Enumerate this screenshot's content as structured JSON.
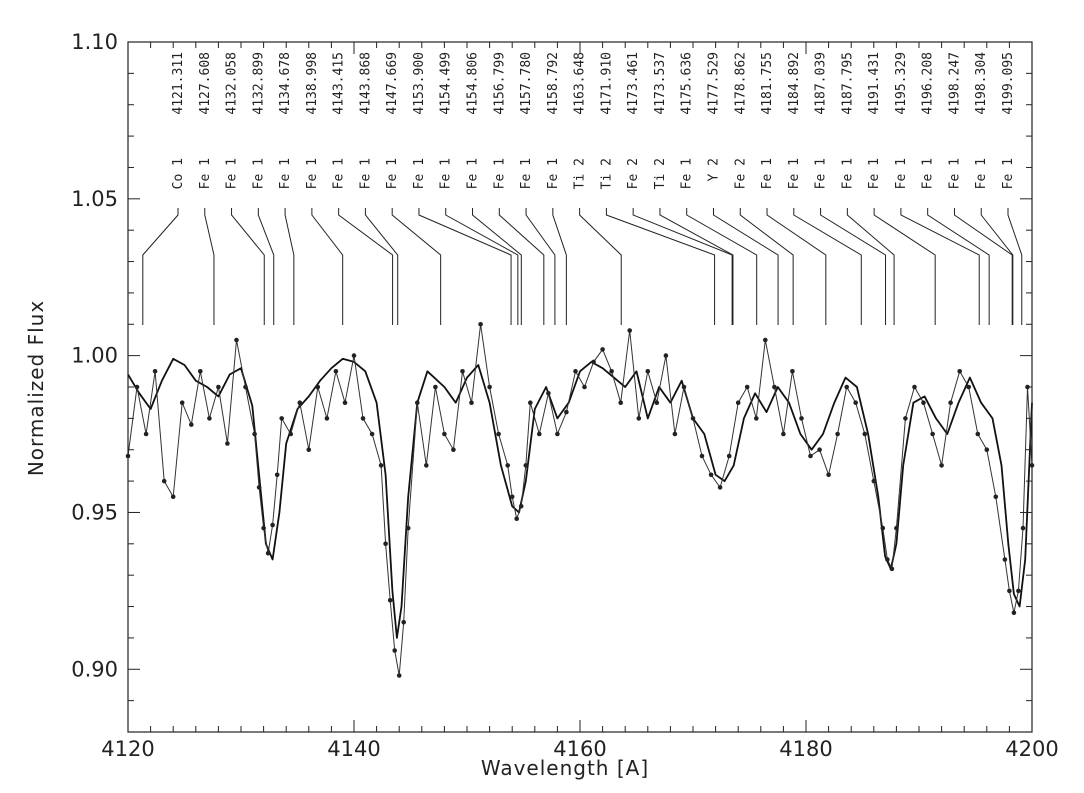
{
  "chart_data": {
    "type": "line",
    "xlabel": "Wavelength [A]",
    "ylabel": "Normalized Flux",
    "xlim": [
      4120,
      4200
    ],
    "ylim": [
      0.88,
      1.1
    ],
    "x_ticks": [
      "4120",
      "4140",
      "4160",
      "4180",
      "4200"
    ],
    "y_ticks": [
      "0.90",
      "0.95",
      "1.00",
      "1.05",
      "1.10"
    ],
    "grid": false,
    "line_identifications": [
      {
        "wavelength": "4121.311",
        "element": "Co 1"
      },
      {
        "wavelength": "4127.608",
        "element": "Fe 1"
      },
      {
        "wavelength": "4132.058",
        "element": "Fe 1"
      },
      {
        "wavelength": "4132.899",
        "element": "Fe 1"
      },
      {
        "wavelength": "4134.678",
        "element": "Fe 1"
      },
      {
        "wavelength": "4138.998",
        "element": "Fe 1"
      },
      {
        "wavelength": "4143.415",
        "element": "Fe 1"
      },
      {
        "wavelength": "4143.868",
        "element": "Fe 1"
      },
      {
        "wavelength": "4147.669",
        "element": "Fe 1"
      },
      {
        "wavelength": "4153.900",
        "element": "Fe 1"
      },
      {
        "wavelength": "4154.499",
        "element": "Fe 1"
      },
      {
        "wavelength": "4154.806",
        "element": "Fe 1"
      },
      {
        "wavelength": "4156.799",
        "element": "Fe 1"
      },
      {
        "wavelength": "4157.780",
        "element": "Fe 1"
      },
      {
        "wavelength": "4158.792",
        "element": "Fe 1"
      },
      {
        "wavelength": "4163.648",
        "element": "Ti 2"
      },
      {
        "wavelength": "4171.910",
        "element": "Ti 2"
      },
      {
        "wavelength": "4173.461",
        "element": "Fe 2"
      },
      {
        "wavelength": "4173.537",
        "element": "Ti 2"
      },
      {
        "wavelength": "4175.636",
        "element": "Fe 1"
      },
      {
        "wavelength": "4177.529",
        "element": "Y 2"
      },
      {
        "wavelength": "4178.862",
        "element": "Fe 2"
      },
      {
        "wavelength": "4181.755",
        "element": "Fe 1"
      },
      {
        "wavelength": "4184.892",
        "element": "Fe 1"
      },
      {
        "wavelength": "4187.039",
        "element": "Fe 1"
      },
      {
        "wavelength": "4187.795",
        "element": "Fe 1"
      },
      {
        "wavelength": "4191.431",
        "element": "Fe 1"
      },
      {
        "wavelength": "4195.329",
        "element": "Fe 1"
      },
      {
        "wavelength": "4196.208",
        "element": "Fe 1"
      },
      {
        "wavelength": "4198.247",
        "element": "Fe 1"
      },
      {
        "wavelength": "4198.304",
        "element": "Fe 1"
      },
      {
        "wavelength": "4199.095",
        "element": "Fe 1"
      }
    ],
    "series": [
      {
        "style": "observed, points connected",
        "x": [
          4120.0,
          4120.8,
          4121.6,
          4122.4,
          4123.2,
          4124.0,
          4124.8,
          4125.6,
          4126.4,
          4127.2,
          4128.0,
          4128.8,
          4129.6,
          4130.4,
          4131.2,
          4131.6,
          4132.0,
          4132.4,
          4132.8,
          4133.2,
          4133.6,
          4134.4,
          4135.2,
          4136.0,
          4136.8,
          4137.6,
          4138.4,
          4139.2,
          4140.0,
          4140.8,
          4141.6,
          4142.4,
          4142.8,
          4143.2,
          4143.6,
          4144.0,
          4144.4,
          4144.8,
          4145.6,
          4146.4,
          4147.2,
          4148.0,
          4148.8,
          4149.6,
          4150.4,
          4151.2,
          4152.0,
          4152.8,
          4153.6,
          4154.0,
          4154.4,
          4154.8,
          4155.2,
          4155.6,
          4156.4,
          4157.2,
          4158.0,
          4158.8,
          4159.6,
          4160.4,
          4161.2,
          4162.0,
          4162.8,
          4163.6,
          4164.4,
          4165.2,
          4166.0,
          4166.8,
          4167.6,
          4168.4,
          4169.2,
          4170.0,
          4170.8,
          4171.6,
          4172.4,
          4173.2,
          4174.0,
          4174.8,
          4175.6,
          4176.4,
          4177.2,
          4178.0,
          4178.8,
          4179.6,
          4180.4,
          4181.2,
          4182.0,
          4182.8,
          4183.6,
          4184.4,
          4185.2,
          4186.0,
          4186.8,
          4187.2,
          4187.6,
          4188.0,
          4188.8,
          4189.6,
          4190.4,
          4191.2,
          4192.0,
          4192.8,
          4193.6,
          4194.4,
          4195.2,
          4196.0,
          4196.8,
          4197.6,
          4198.0,
          4198.4,
          4198.8,
          4199.2,
          4199.6,
          4200.0
        ],
        "y": [
          0.968,
          0.99,
          0.975,
          0.995,
          0.96,
          0.955,
          0.985,
          0.978,
          0.995,
          0.98,
          0.99,
          0.972,
          1.005,
          0.99,
          0.975,
          0.958,
          0.945,
          0.937,
          0.946,
          0.962,
          0.98,
          0.975,
          0.985,
          0.97,
          0.99,
          0.98,
          0.995,
          0.985,
          1.0,
          0.98,
          0.975,
          0.965,
          0.94,
          0.922,
          0.906,
          0.898,
          0.915,
          0.945,
          0.985,
          0.965,
          0.99,
          0.975,
          0.97,
          0.995,
          0.985,
          1.01,
          0.99,
          0.975,
          0.965,
          0.955,
          0.948,
          0.952,
          0.965,
          0.985,
          0.975,
          0.988,
          0.975,
          0.982,
          0.995,
          0.99,
          0.998,
          1.002,
          0.995,
          0.985,
          1.008,
          0.98,
          0.995,
          0.985,
          1.0,
          0.975,
          0.99,
          0.98,
          0.968,
          0.962,
          0.958,
          0.968,
          0.985,
          0.99,
          0.98,
          1.005,
          0.99,
          0.975,
          0.995,
          0.98,
          0.968,
          0.97,
          0.962,
          0.975,
          0.99,
          0.985,
          0.975,
          0.96,
          0.945,
          0.935,
          0.932,
          0.945,
          0.98,
          0.99,
          0.985,
          0.975,
          0.965,
          0.985,
          0.995,
          0.99,
          0.975,
          0.97,
          0.955,
          0.935,
          0.925,
          0.918,
          0.925,
          0.945,
          0.99,
          0.965
        ]
      },
      {
        "style": "synthetic, smooth",
        "x": [
          4120.0,
          4121.0,
          4122.0,
          4123.0,
          4124.0,
          4125.0,
          4126.0,
          4127.0,
          4128.0,
          4129.0,
          4130.0,
          4131.0,
          4131.6,
          4132.2,
          4132.8,
          4133.4,
          4134.0,
          4135.0,
          4136.0,
          4137.0,
          4138.0,
          4139.0,
          4140.0,
          4141.0,
          4142.0,
          4142.8,
          4143.4,
          4143.8,
          4144.2,
          4144.8,
          4145.6,
          4146.5,
          4148.0,
          4149.0,
          4150.0,
          4151.0,
          4152.0,
          4153.0,
          4154.0,
          4154.6,
          4155.2,
          4156.0,
          4157.0,
          4158.0,
          4159.0,
          4160.0,
          4161.0,
          4162.0,
          4163.0,
          4164.0,
          4165.0,
          4166.0,
          4167.0,
          4168.0,
          4169.0,
          4170.0,
          4171.0,
          4172.0,
          4172.8,
          4173.6,
          4174.5,
          4175.5,
          4176.5,
          4177.5,
          4178.5,
          4179.5,
          4180.5,
          4181.5,
          4182.5,
          4183.5,
          4184.5,
          4185.5,
          4186.4,
          4187.0,
          4187.5,
          4188.0,
          4188.6,
          4189.5,
          4190.5,
          4191.5,
          4192.5,
          4193.5,
          4194.5,
          4195.5,
          4196.5,
          4197.3,
          4197.9,
          4198.4,
          4198.9,
          4199.4,
          4200.0
        ],
        "y": [
          0.994,
          0.988,
          0.983,
          0.992,
          0.999,
          0.997,
          0.992,
          0.99,
          0.987,
          0.994,
          0.996,
          0.984,
          0.962,
          0.94,
          0.935,
          0.95,
          0.972,
          0.983,
          0.987,
          0.992,
          0.996,
          0.999,
          0.998,
          0.995,
          0.985,
          0.962,
          0.925,
          0.91,
          0.92,
          0.955,
          0.985,
          0.995,
          0.99,
          0.985,
          0.993,
          0.997,
          0.985,
          0.965,
          0.952,
          0.95,
          0.96,
          0.983,
          0.99,
          0.98,
          0.985,
          0.995,
          0.998,
          0.996,
          0.993,
          0.99,
          0.995,
          0.98,
          0.99,
          0.985,
          0.992,
          0.98,
          0.975,
          0.962,
          0.96,
          0.965,
          0.98,
          0.988,
          0.982,
          0.99,
          0.985,
          0.975,
          0.97,
          0.975,
          0.985,
          0.993,
          0.99,
          0.975,
          0.955,
          0.936,
          0.932,
          0.94,
          0.965,
          0.985,
          0.987,
          0.98,
          0.975,
          0.985,
          0.993,
          0.985,
          0.98,
          0.965,
          0.94,
          0.924,
          0.92,
          0.935,
          0.985
        ]
      }
    ]
  }
}
